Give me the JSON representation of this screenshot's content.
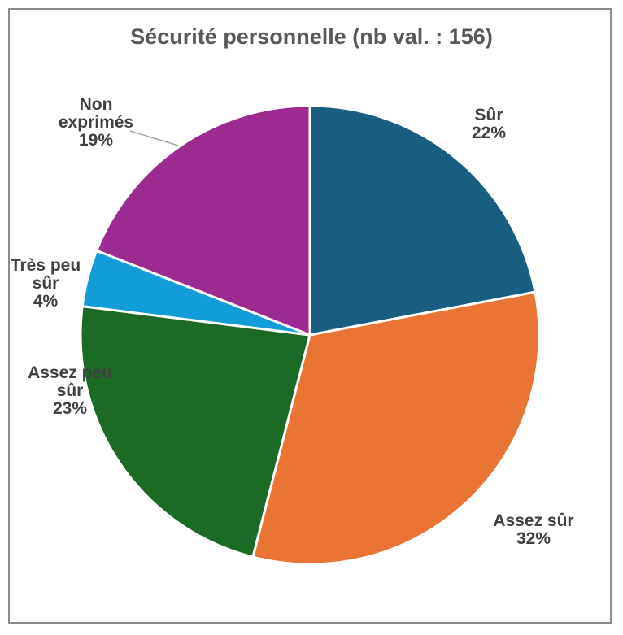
{
  "chart_data": {
    "type": "pie",
    "title": "Sécurité personnelle (nb val. : 156)",
    "slices": [
      {
        "label_lines": [
          "Sûr"
        ],
        "pct_label": "22%",
        "value": 22,
        "color": "#175e82"
      },
      {
        "label_lines": [
          "Assez sûr"
        ],
        "pct_label": "32%",
        "value": 32,
        "color": "#ea7433"
      },
      {
        "label_lines": [
          "Assez peu",
          "sûr"
        ],
        "pct_label": "23%",
        "value": 23,
        "color": "#1b6a26"
      },
      {
        "label_lines": [
          "Très peu",
          "sûr"
        ],
        "pct_label": "4%",
        "value": 4,
        "color": "#139dd8"
      },
      {
        "label_lines": [
          "Non",
          "exprimés"
        ],
        "pct_label": "19%",
        "value": 19,
        "color": "#9c2a91"
      }
    ],
    "legend": "none"
  }
}
